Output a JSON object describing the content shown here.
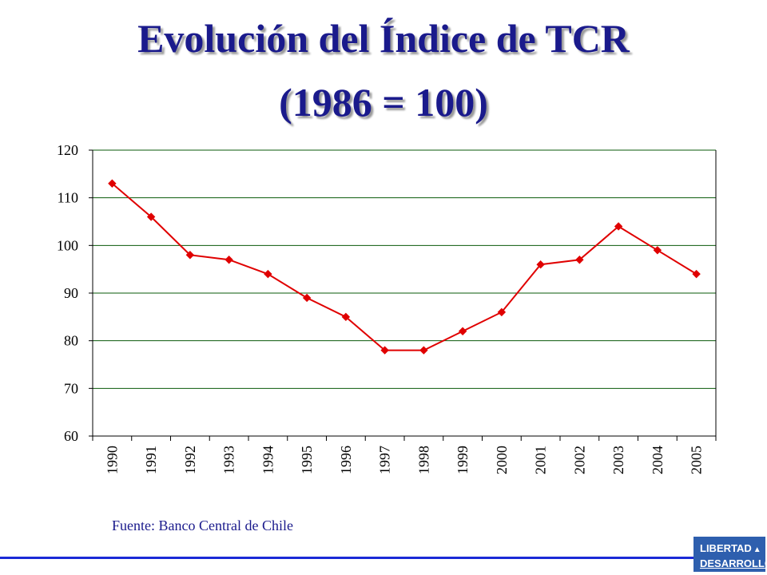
{
  "title_line1": "Evolución del Índice de TCR",
  "title_line2": "(1986 = 100)",
  "source": "Fuente: Banco Central de Chile",
  "logo": {
    "line1": "LIBERTAD",
    "line2": "DESARROLLO",
    "icon": "triangle-mark-icon"
  },
  "colors": {
    "series": "#e00000",
    "title": "#1a1a8c",
    "grid": "#0a5a0a",
    "footer_line": "#1a2ad6"
  },
  "chart_data": {
    "type": "line",
    "x": [
      "1990",
      "1991",
      "1992",
      "1993",
      "1994",
      "1995",
      "1996",
      "1997",
      "1998",
      "1999",
      "2000",
      "2001",
      "2002",
      "2003",
      "2004",
      "2005"
    ],
    "series": [
      {
        "values": [
          113,
          106,
          98,
          97,
          94,
          89,
          85,
          78,
          78,
          82,
          86,
          96,
          97,
          104,
          99,
          94
        ]
      }
    ],
    "ylim": [
      60,
      120
    ],
    "yticks": [
      60,
      70,
      80,
      90,
      100,
      110,
      120
    ],
    "grid": true,
    "legend": "none",
    "marker": "diamond"
  }
}
